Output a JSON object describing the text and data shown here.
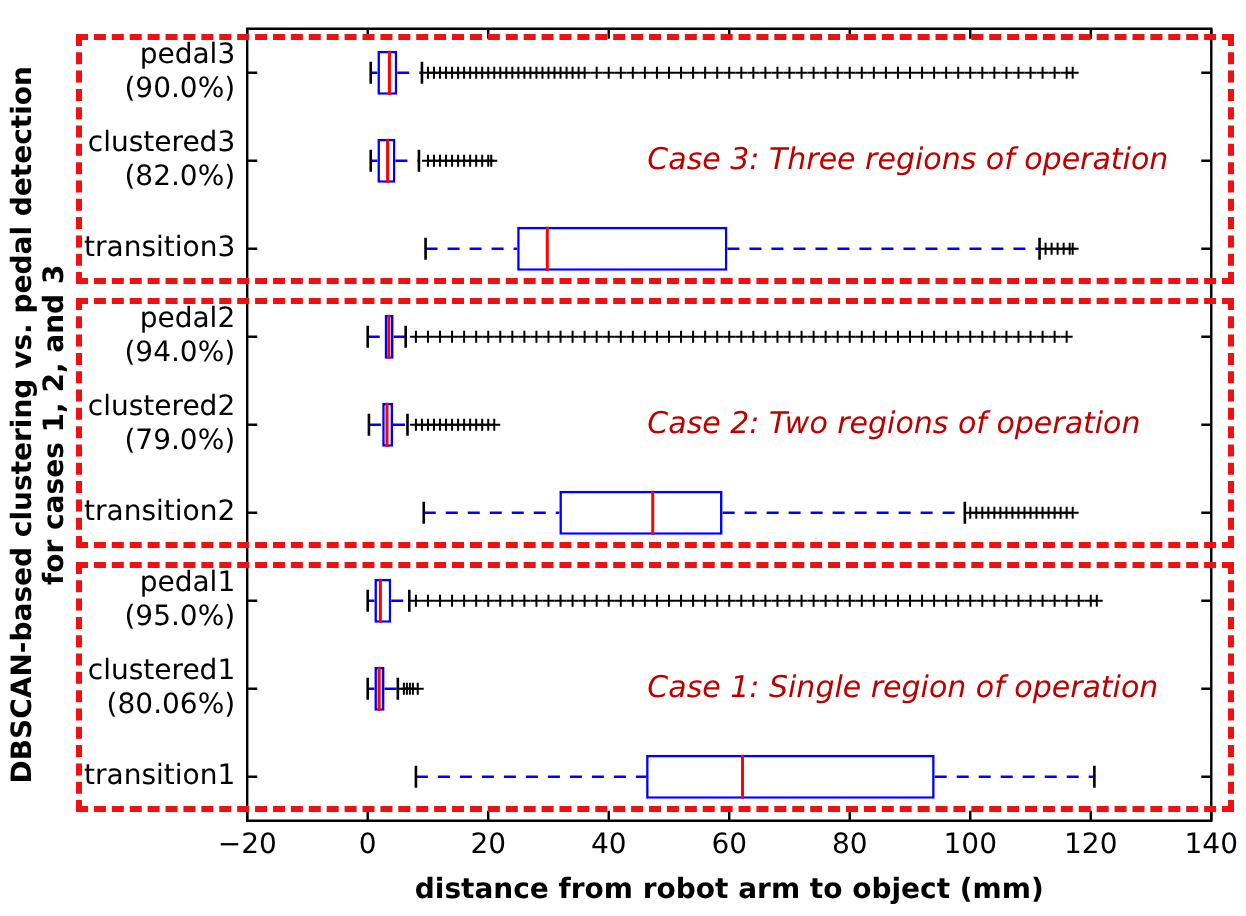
{
  "chart_data": {
    "type": "box",
    "orientation": "horizontal",
    "xlabel": "distance from robot arm to object (mm)",
    "ylabel": "DBSCAN-based clustering vs. pedal detection\nfor cases 1, 2, and 3",
    "categories": [
      "pedal3\n(90.0%)",
      "clustered3\n(82.0%)",
      "transition3",
      "pedal2\n(94.0%)",
      "clustered2\n(79.0%)",
      "transition2",
      "pedal1\n(95.0%)",
      "clustered1\n(80.06%)",
      "transition1"
    ],
    "color": "#0000ff",
    "boxes": [
      {
        "low": 0.5,
        "q1": 1.6,
        "median": 3.6,
        "q3": 4.9,
        "high": 9,
        "outliers": [
          10,
          11,
          12,
          13,
          14,
          15,
          16,
          17,
          18,
          19,
          20,
          21,
          22,
          23,
          24,
          25,
          26,
          27,
          28,
          29,
          30,
          31,
          32,
          33,
          34,
          35,
          36,
          38,
          40,
          42,
          44,
          46,
          48,
          50,
          52,
          54,
          56,
          58,
          60,
          62,
          64,
          66,
          68,
          70,
          72,
          74,
          76,
          78,
          80,
          82,
          84,
          86,
          88,
          90,
          92,
          94,
          96,
          98,
          100,
          102,
          104,
          106,
          108,
          110,
          112,
          114,
          116,
          117
        ]
      },
      {
        "low": 0.5,
        "q1": 1.6,
        "median": 3.3,
        "q3": 4.6,
        "high": 8.5,
        "outliers": [
          10,
          11,
          12,
          13,
          14,
          15,
          16,
          17,
          18,
          19,
          20,
          20.5
        ]
      },
      {
        "low": 9.6,
        "q1": 24.8,
        "median": 29.8,
        "q3": 59.7,
        "high": 111.5,
        "outliers": [
          112.5,
          113.5,
          114.5,
          115.5,
          116.5,
          117
        ]
      },
      {
        "low": 0,
        "q1": 2.8,
        "median": 3.5,
        "q3": 4.3,
        "high": 6.3,
        "outliers": [
          8,
          10,
          12,
          14,
          16,
          18,
          20,
          22,
          24,
          26,
          28,
          30,
          32,
          34,
          36,
          38,
          40,
          42,
          44,
          46,
          48,
          50,
          52,
          54,
          56,
          58,
          60,
          62,
          64,
          66,
          68,
          70,
          72,
          74,
          76,
          78,
          80,
          82,
          84,
          86,
          88,
          90,
          92,
          94,
          96,
          98,
          100,
          102,
          104,
          106,
          108,
          110,
          112,
          114,
          116
        ]
      },
      {
        "low": 0.2,
        "q1": 2.4,
        "median": 3.2,
        "q3": 4.2,
        "high": 6.6,
        "outliers": [
          8,
          9,
          10,
          11,
          12,
          13,
          14,
          15,
          16,
          17,
          18,
          19,
          20,
          21
        ]
      },
      {
        "low": 9.3,
        "q1": 31.8,
        "median": 47.3,
        "q3": 58.9,
        "high": 99.1,
        "outliers": [
          100,
          101,
          102,
          103,
          104,
          105,
          106,
          107,
          108,
          109,
          110,
          111,
          112,
          113,
          114,
          115,
          116,
          117
        ]
      },
      {
        "low": 0,
        "q1": 1.1,
        "median": 2.1,
        "q3": 3.9,
        "high": 6.9,
        "outliers": [
          8,
          10,
          12,
          14,
          16,
          18,
          20,
          22,
          24,
          26,
          28,
          30,
          32,
          34,
          36,
          38,
          40,
          42,
          44,
          46,
          48,
          50,
          52,
          54,
          56,
          58,
          60,
          62,
          64,
          66,
          68,
          70,
          72,
          74,
          76,
          78,
          80,
          82,
          84,
          86,
          88,
          90,
          92,
          94,
          96,
          98,
          100,
          102,
          104,
          106,
          108,
          110,
          112,
          114,
          116,
          118,
          120,
          121
        ]
      },
      {
        "low": 0,
        "q1": 1.1,
        "median": 1.9,
        "q3": 2.8,
        "high": 5,
        "outliers": [
          6,
          6.5,
          7,
          7.5,
          8.3
        ]
      },
      {
        "low": 8,
        "q1": 46.2,
        "median": 62.2,
        "q3": 94.1,
        "high": 120.6
      }
    ],
    "xlim": [
      -20,
      140
    ],
    "xticks": [
      -20,
      0,
      20,
      40,
      60,
      80,
      100,
      120,
      140
    ],
    "annotations": [
      "Case 3: Three regions of operation",
      "Case 2: Two regions of operation",
      "Case 1: Single region of operation"
    ],
    "grid": false,
    "legend": false
  }
}
